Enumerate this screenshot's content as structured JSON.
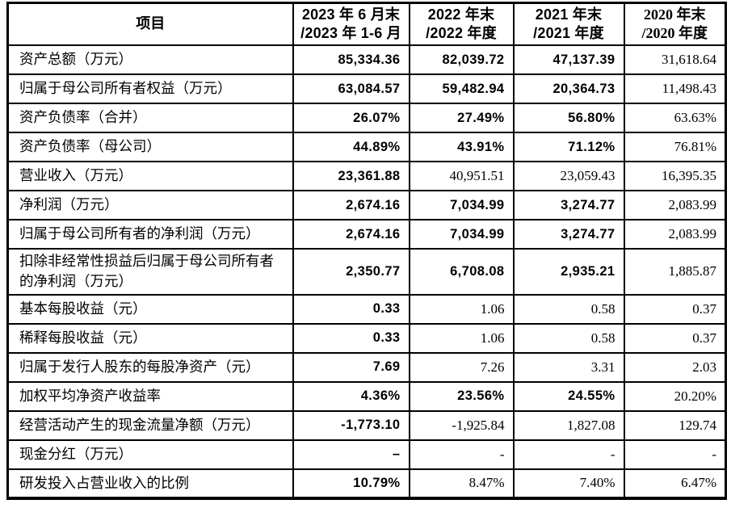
{
  "colors": {
    "background": "#ffffff",
    "border": "#000000",
    "text": "#000000"
  },
  "table": {
    "header": {
      "item_label": "项目",
      "columns": [
        {
          "line1": "2023 年 6 月末",
          "line2": "/2023 年 1-6 月"
        },
        {
          "line1": "2022 年末",
          "line2": "/2022 年度"
        },
        {
          "line1": "2021 年末",
          "line2": "/2021 年度"
        },
        {
          "line1": "2020 年末",
          "line2": "/2020 年度"
        }
      ]
    },
    "rows": [
      {
        "label": "资产总额（万元）",
        "values": [
          "85,334.36",
          "82,039.72",
          "47,137.39",
          "31,618.64"
        ],
        "bold": [
          true,
          true,
          true,
          false
        ]
      },
      {
        "label": "归属于母公司所有者权益（万元）",
        "values": [
          "63,084.57",
          "59,482.94",
          "20,364.73",
          "11,498.43"
        ],
        "bold": [
          true,
          true,
          true,
          false
        ]
      },
      {
        "label": "资产负债率（合并）",
        "values": [
          "26.07%",
          "27.49%",
          "56.80%",
          "63.63%"
        ],
        "bold": [
          true,
          true,
          true,
          false
        ]
      },
      {
        "label": "资产负债率（母公司）",
        "values": [
          "44.89%",
          "43.91%",
          "71.12%",
          "76.81%"
        ],
        "bold": [
          true,
          true,
          true,
          false
        ]
      },
      {
        "label": "营业收入（万元）",
        "values": [
          "23,361.88",
          "40,951.51",
          "23,059.43",
          "16,395.35"
        ],
        "bold": [
          true,
          false,
          false,
          false
        ]
      },
      {
        "label": "净利润（万元）",
        "values": [
          "2,674.16",
          "7,034.99",
          "3,274.77",
          "2,083.99"
        ],
        "bold": [
          true,
          true,
          true,
          false
        ]
      },
      {
        "label": "归属于母公司所有者的净利润（万元）",
        "values": [
          "2,674.16",
          "7,034.99",
          "3,274.77",
          "2,083.99"
        ],
        "bold": [
          true,
          true,
          true,
          false
        ]
      },
      {
        "label": "扣除非经常性损益后归属于母公司所有者的净利润（万元）",
        "values": [
          "2,350.77",
          "6,708.08",
          "2,935.21",
          "1,885.87"
        ],
        "bold": [
          true,
          true,
          true,
          false
        ]
      },
      {
        "label": "基本每股收益（元）",
        "values": [
          "0.33",
          "1.06",
          "0.58",
          "0.37"
        ],
        "bold": [
          true,
          false,
          false,
          false
        ]
      },
      {
        "label": "稀释每股收益（元）",
        "values": [
          "0.33",
          "1.06",
          "0.58",
          "0.37"
        ],
        "bold": [
          true,
          false,
          false,
          false
        ]
      },
      {
        "label": "归属于发行人股东的每股净资产（元）",
        "values": [
          "7.69",
          "7.26",
          "3.31",
          "2.03"
        ],
        "bold": [
          true,
          false,
          false,
          false
        ]
      },
      {
        "label": "加权平均净资产收益率",
        "values": [
          "4.36%",
          "23.56%",
          "24.55%",
          "20.20%"
        ],
        "bold": [
          true,
          true,
          true,
          false
        ]
      },
      {
        "label": "经营活动产生的现金流量净额（万元）",
        "values": [
          "-1,773.10",
          "-1,925.84",
          "1,827.08",
          "129.74"
        ],
        "bold": [
          true,
          false,
          false,
          false
        ]
      },
      {
        "label": "现金分红（万元）",
        "values": [
          "–",
          "-",
          "-",
          "-"
        ],
        "bold": [
          true,
          false,
          false,
          false
        ]
      },
      {
        "label": "研发投入占营业收入的比例",
        "values": [
          "10.79%",
          "8.47%",
          "7.40%",
          "6.47%"
        ],
        "bold": [
          true,
          false,
          false,
          false
        ]
      }
    ]
  }
}
